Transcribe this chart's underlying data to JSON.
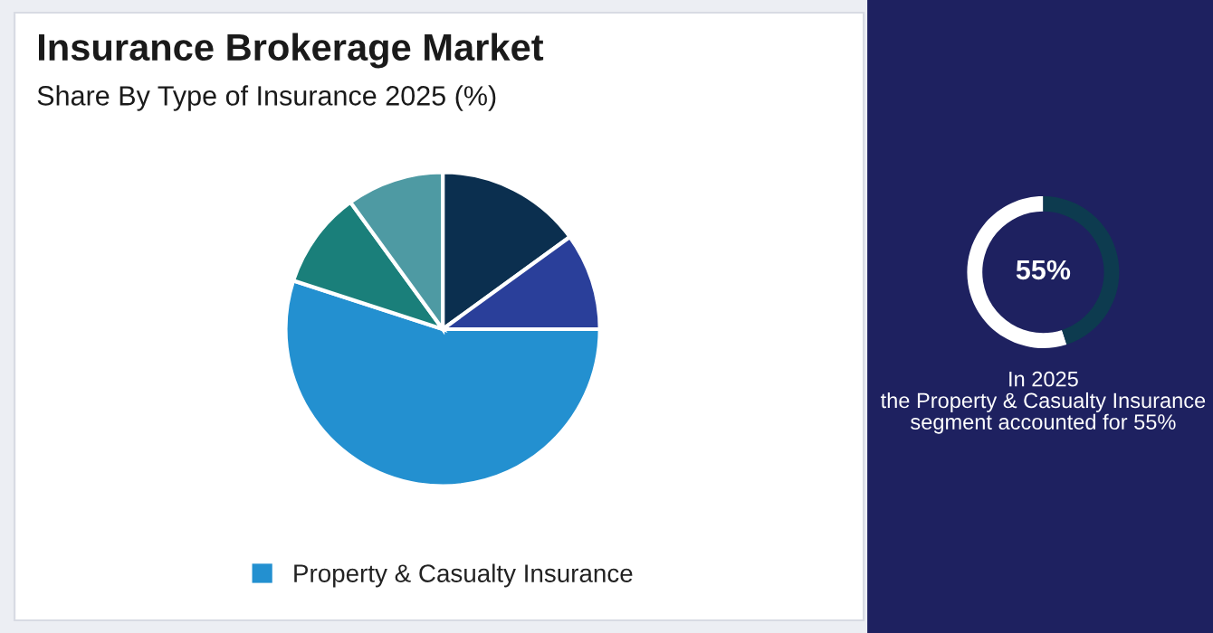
{
  "chart_data": [
    {
      "type": "pie",
      "title": "Insurance Brokerage Market",
      "subtitle": "Share By Type of Insurance 2025 (%)",
      "categories": [
        null,
        null,
        "Property & Casualty Insurance",
        null,
        null
      ],
      "values": [
        15,
        10,
        55,
        10,
        10
      ],
      "colors": [
        "#0b2f4f",
        "#2a3f9a",
        "#2390d0",
        "#1a7f7a",
        "#4e9aa3"
      ],
      "legend": "bottom"
    },
    {
      "type": "donut",
      "categories": [
        null,
        null
      ],
      "values": [
        55,
        45
      ],
      "colors": [
        "#ffffff",
        "#0d3b4f"
      ],
      "annotations": [
        "55%",
        "In 2025\nthe Property & Casualty Insurance\nsegment accounted for 55%"
      ]
    }
  ]
}
